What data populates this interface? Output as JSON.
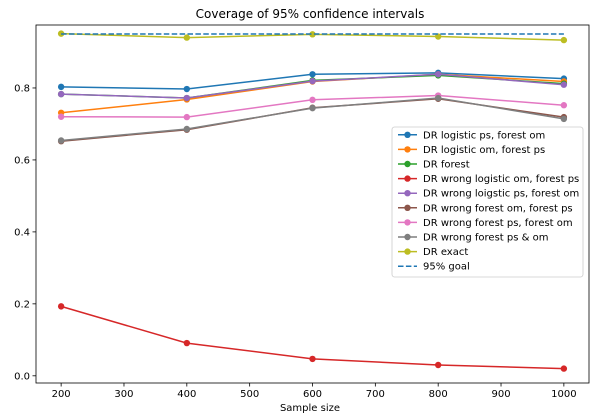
{
  "chart_data": {
    "type": "line",
    "title": "Coverage of 95% confidence intervals",
    "xlabel": "Sample size",
    "ylabel": "",
    "x": [
      200,
      400,
      600,
      800,
      1000
    ],
    "xlim": [
      160,
      1040
    ],
    "ylim": [
      -0.02,
      0.975
    ],
    "xticks": [
      200,
      300,
      400,
      500,
      600,
      700,
      800,
      900,
      1000
    ],
    "yticks": [
      0.0,
      0.2,
      0.4,
      0.6,
      0.8
    ],
    "ytick_labels": [
      "0.0",
      "0.2",
      "0.4",
      "0.6",
      "0.8"
    ],
    "grid": false,
    "legend_position": "center-right",
    "series": [
      {
        "name": "DR logistic ps, forest om",
        "color": "#1f77b4",
        "style": "solid-marker",
        "values": [
          0.803,
          0.797,
          0.838,
          0.842,
          0.826
        ]
      },
      {
        "name": "DR logistic om, forest ps",
        "color": "#ff7f0e",
        "style": "solid-marker",
        "values": [
          0.731,
          0.768,
          0.818,
          0.838,
          0.818
        ]
      },
      {
        "name": "DR forest",
        "color": "#2ca02c",
        "style": "solid-marker",
        "values": [
          0.783,
          0.772,
          0.821,
          0.835,
          0.812
        ]
      },
      {
        "name": "DR wrong logistic om, forest ps",
        "color": "#d62728",
        "style": "solid-marker",
        "values": [
          0.193,
          0.091,
          0.047,
          0.03,
          0.02
        ]
      },
      {
        "name": "DR wrong loigstic ps, forest om",
        "color": "#9467bd",
        "style": "solid-marker",
        "values": [
          0.783,
          0.772,
          0.819,
          0.838,
          0.809
        ]
      },
      {
        "name": "DR wrong forest om, forest ps",
        "color": "#8c564b",
        "style": "solid-marker",
        "values": [
          0.652,
          0.684,
          0.745,
          0.77,
          0.719
        ]
      },
      {
        "name": "DR wrong forest ps, forest om",
        "color": "#e377c2",
        "style": "solid-marker",
        "values": [
          0.72,
          0.719,
          0.767,
          0.779,
          0.752
        ]
      },
      {
        "name": "DR wrong forest ps & om",
        "color": "#7f7f7f",
        "style": "solid-marker",
        "values": [
          0.654,
          0.686,
          0.744,
          0.772,
          0.714
        ]
      },
      {
        "name": "DR exact",
        "color": "#bcbd22",
        "style": "solid-marker",
        "values": [
          0.951,
          0.94,
          0.949,
          0.943,
          0.933
        ]
      },
      {
        "name": "95% goal",
        "color": "#1f77b4",
        "style": "dashed",
        "values": [
          0.95,
          0.95,
          0.95,
          0.95,
          0.95
        ]
      }
    ]
  }
}
